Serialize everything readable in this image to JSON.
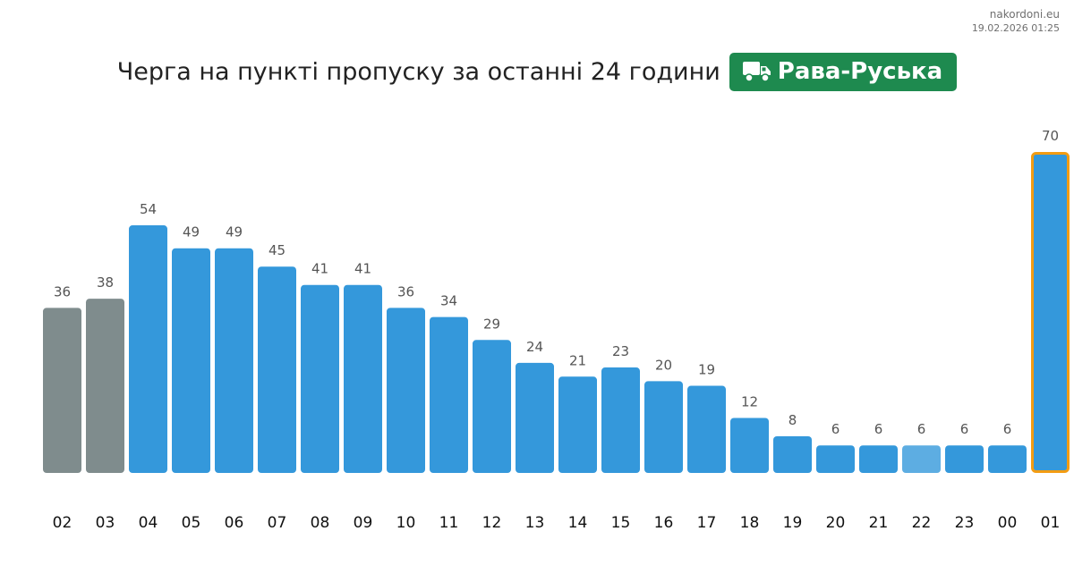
{
  "source": {
    "site": "nakordoni.eu",
    "timestamp": "19.02.2026 01:25"
  },
  "header": {
    "title": "Черга на пункті пропуску за останні 24 години",
    "checkpoint": "Рава-Руська",
    "checkpoint_icon": "truck-icon"
  },
  "colors": {
    "past": "#7f8c8d",
    "normal": "#3498db",
    "light": "#5dade2",
    "current_border": "#f39c12",
    "badge": "#1e8a4f",
    "value_label": "#555555",
    "tick_label": "#111111"
  },
  "chart_data": {
    "type": "bar",
    "title": "Черга на пункті пропуску за останні 24 години",
    "xlabel": "",
    "ylabel": "",
    "categories": [
      "02",
      "03",
      "04",
      "05",
      "06",
      "07",
      "08",
      "09",
      "10",
      "11",
      "12",
      "13",
      "14",
      "15",
      "16",
      "17",
      "18",
      "19",
      "20",
      "21",
      "22",
      "23",
      "00",
      "01"
    ],
    "values": [
      36,
      38,
      54,
      49,
      49,
      45,
      41,
      41,
      36,
      34,
      29,
      24,
      21,
      23,
      20,
      19,
      12,
      8,
      6,
      6,
      6,
      6,
      6,
      70
    ],
    "bar_styles": [
      "past",
      "past",
      "normal",
      "normal",
      "normal",
      "normal",
      "normal",
      "normal",
      "normal",
      "normal",
      "normal",
      "normal",
      "normal",
      "normal",
      "normal",
      "normal",
      "normal",
      "normal",
      "normal",
      "normal",
      "light",
      "normal",
      "normal",
      "current"
    ],
    "ylim": [
      0,
      70
    ],
    "grid": false,
    "legend": "none",
    "data_labels": true
  }
}
